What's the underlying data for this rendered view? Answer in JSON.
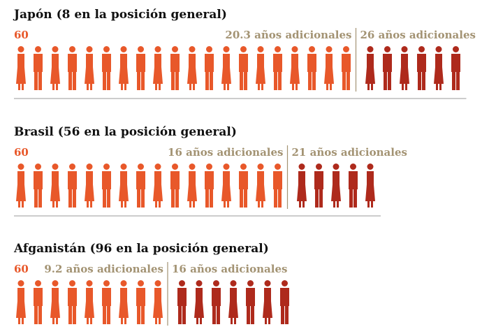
{
  "rows": [
    {
      "title": "Japón (8 en la posición general)",
      "start": "60",
      "label_a": "20.3 años adicionales",
      "label_b": "26 años adicionales",
      "icons_a": 20,
      "icons_b": 6
    },
    {
      "title": "Brasil (56 en la posición general)",
      "start": "60",
      "label_a": "16 años adicionales",
      "label_b": "21 años adicionales",
      "icons_a": 16,
      "icons_b": 5
    },
    {
      "title": "Afganistán (96 en la posición general)",
      "start": "60",
      "label_a": "9.2 años adicionales",
      "label_b": "16 años adicionales",
      "icons_a": 9,
      "icons_b": 7
    }
  ],
  "colors": {
    "a": "#e8582a",
    "b": "#ae2a1c",
    "label": "#a39373",
    "start": "#e8582a"
  }
}
